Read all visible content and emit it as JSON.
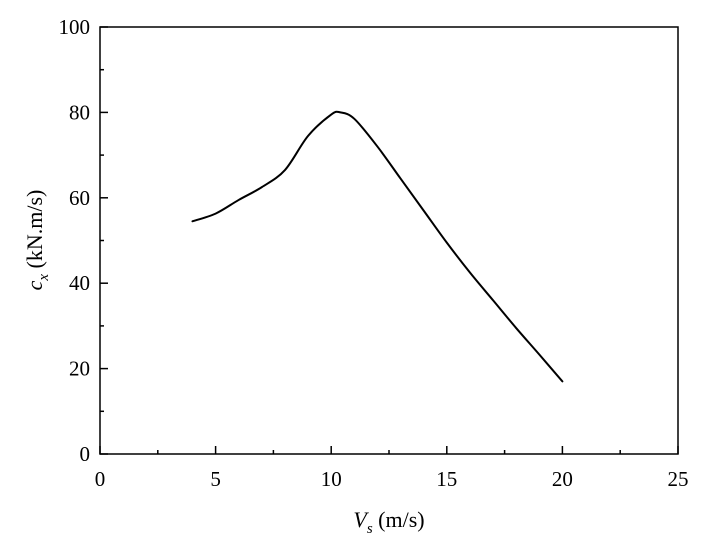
{
  "chart_data": {
    "type": "line",
    "xlabel": {
      "symbol": "V",
      "subscript": "s",
      "unit": " (m/s)"
    },
    "ylabel": {
      "symbol": "c",
      "subscript": "x",
      "unit": " (kN.m/s)"
    },
    "xlim": [
      0,
      25
    ],
    "ylim": [
      0,
      100
    ],
    "xticks": [
      0,
      5,
      10,
      15,
      20,
      25
    ],
    "yticks": [
      0,
      20,
      40,
      60,
      80,
      100
    ],
    "grid": false,
    "series": [
      {
        "x": [
          4,
          5,
          6,
          7,
          8,
          9,
          10,
          10.4,
          11,
          12,
          13,
          14,
          15,
          16,
          17,
          18,
          19,
          20
        ],
        "y": [
          54.5,
          56.3,
          59.5,
          62.5,
          66.5,
          74.5,
          79.5,
          80.0,
          78.5,
          72.0,
          64.5,
          57.0,
          49.5,
          42.5,
          36.0,
          29.5,
          23.3,
          17.0
        ]
      }
    ]
  }
}
